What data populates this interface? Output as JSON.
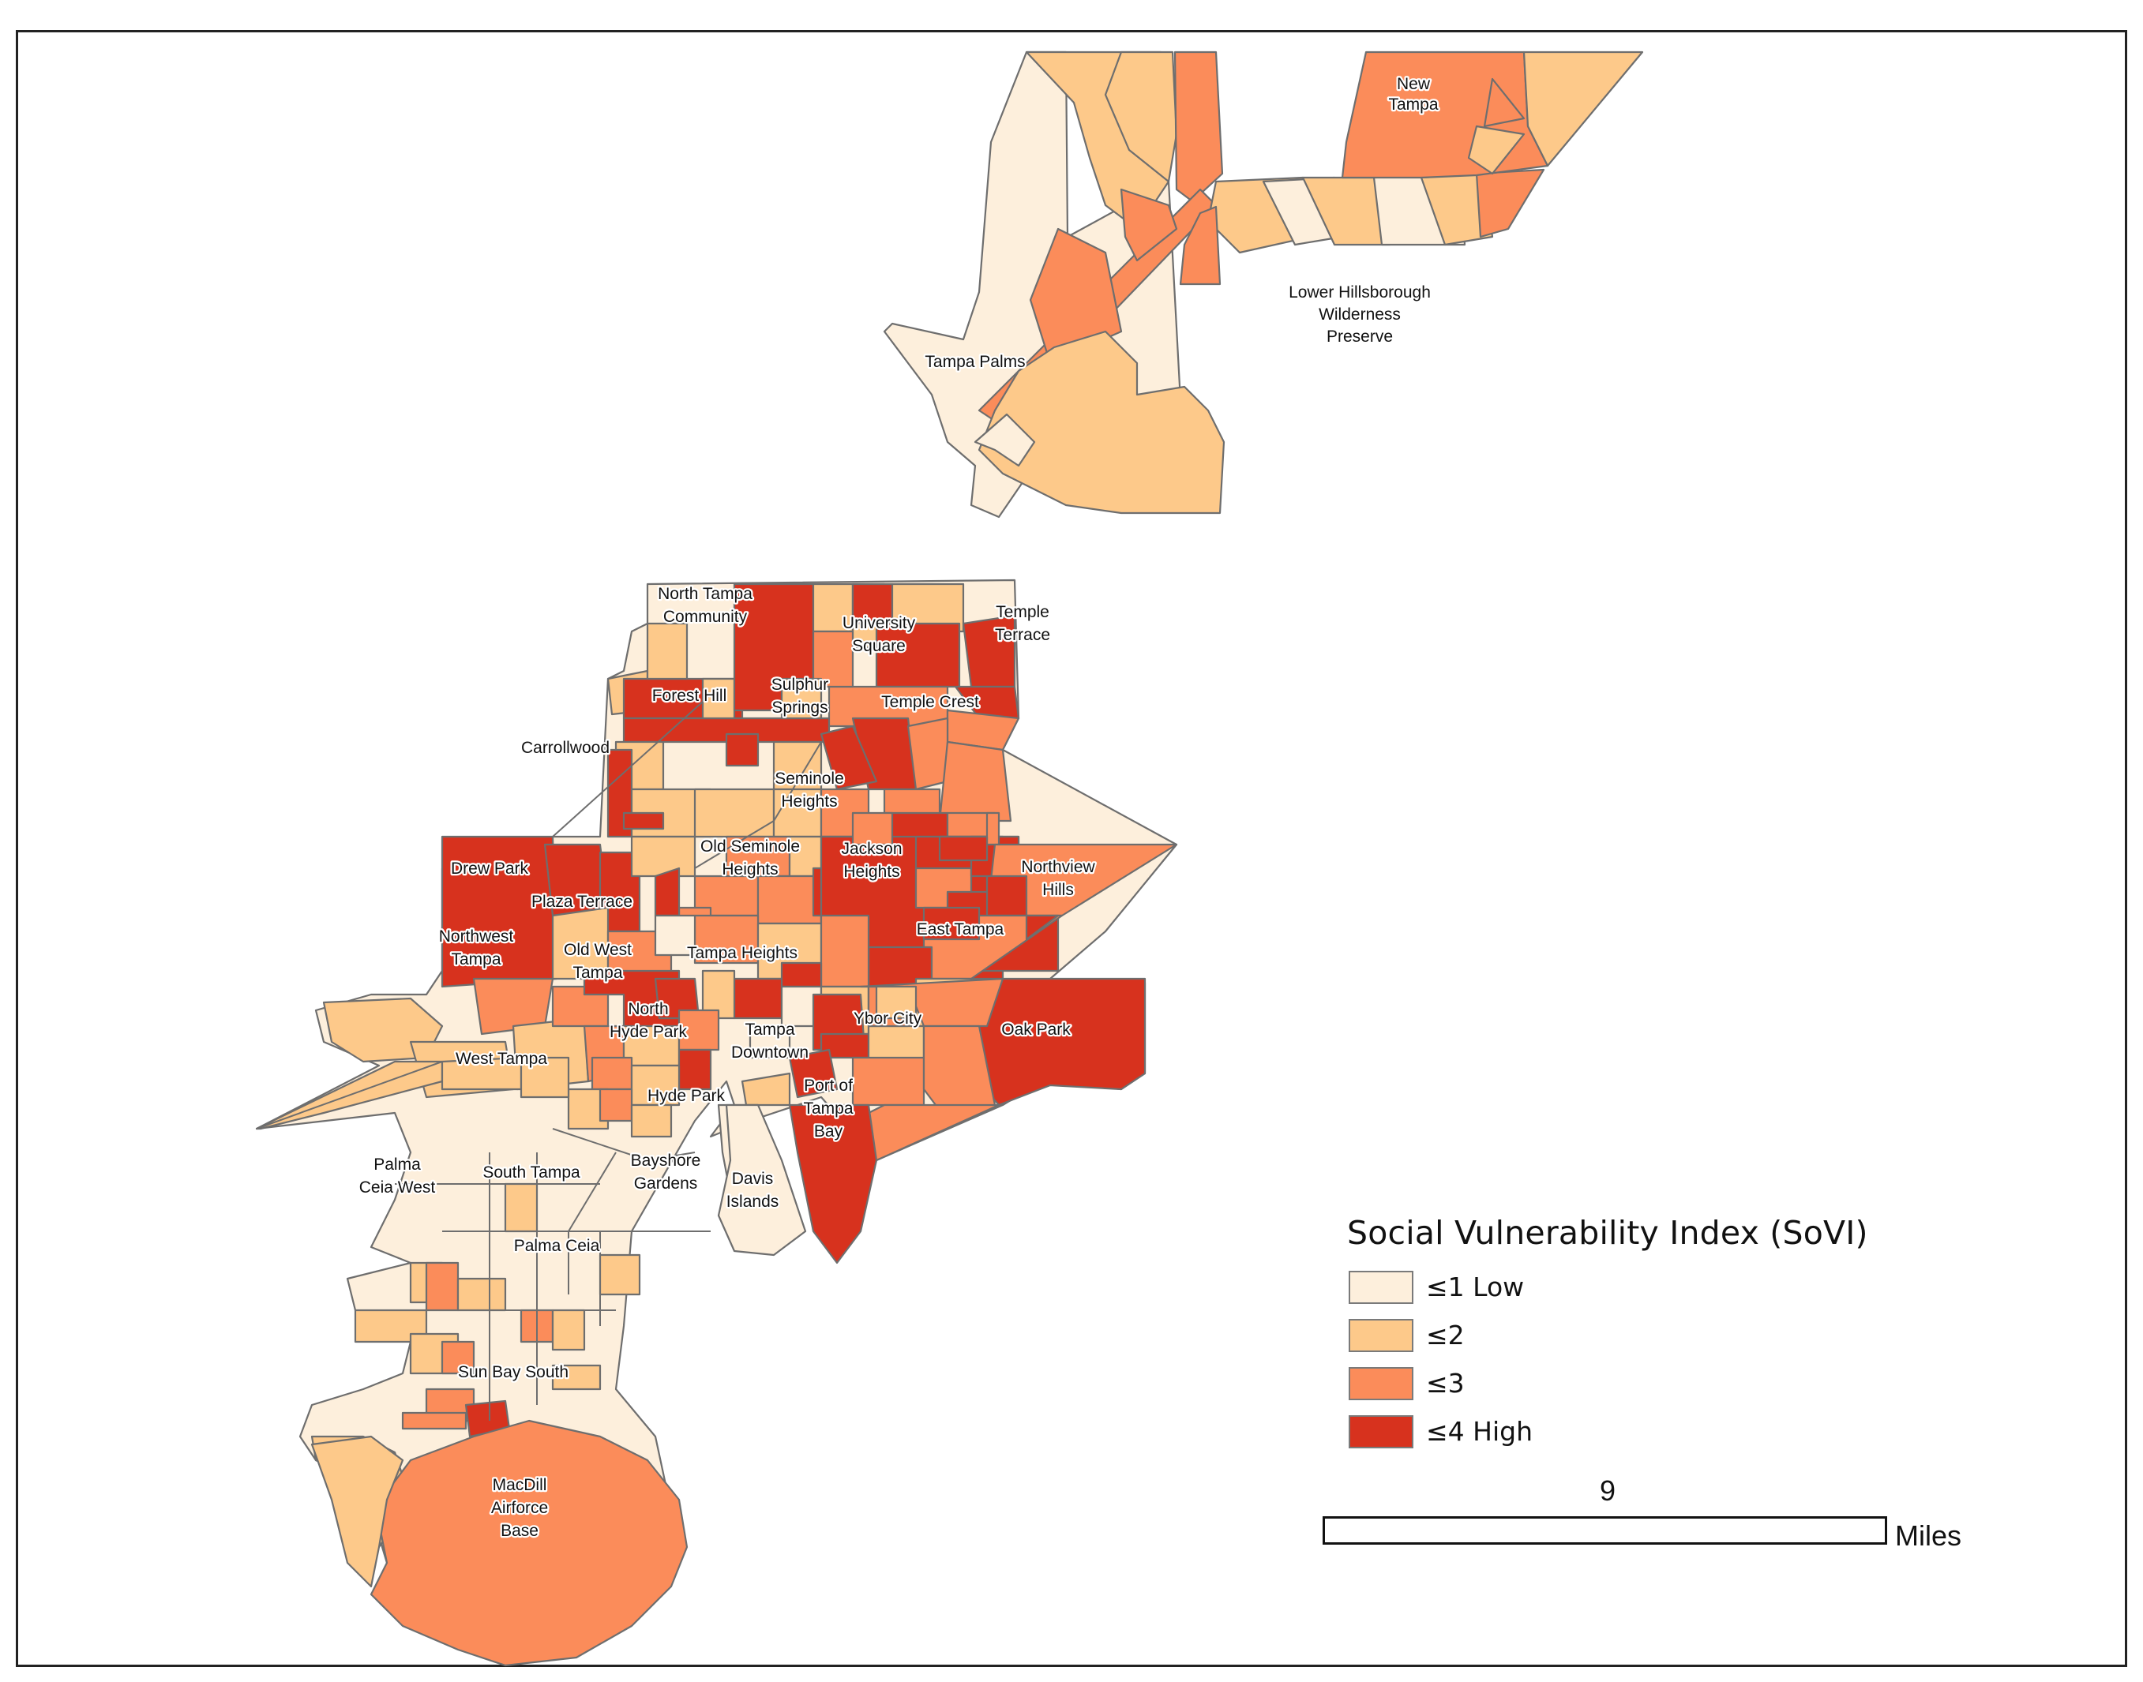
{
  "legend": {
    "title": "Social Vulnerability Index (SoVI)",
    "classes": [
      {
        "label": "≤1 Low",
        "color": "#fdefdc"
      },
      {
        "label": "≤2",
        "color": "#fdc98a"
      },
      {
        "label": "≤3",
        "color": "#fb8c5a"
      },
      {
        "label": "≤4 High",
        "color": "#d7321e"
      }
    ]
  },
  "scale_bar": {
    "value": "9",
    "unit": "Miles"
  },
  "places": {
    "new_tampa": [
      "New",
      "Tampa"
    ],
    "lower_hillsborough": [
      "Lower Hillsborough",
      "Wilderness",
      "Preserve"
    ],
    "tampa_palms": [
      "Tampa Palms"
    ],
    "north_tampa_community": [
      "North Tampa",
      "Community"
    ],
    "university_square": [
      "University",
      "Square"
    ],
    "temple_terrace": [
      "Temple",
      "Terrace"
    ],
    "forest_hill": [
      "Forest Hill"
    ],
    "sulphur_springs": [
      "Sulphur",
      "Springs"
    ],
    "temple_crest": [
      "Temple Crest"
    ],
    "carrollwood": [
      "Carrollwood"
    ],
    "seminole_heights": [
      "Seminole",
      "Heights"
    ],
    "old_seminole_heights": [
      "Old Seminole",
      "Heights"
    ],
    "jackson_heights": [
      "Jackson",
      "Heights"
    ],
    "drew_park": [
      "Drew Park"
    ],
    "northview_hills": [
      "Northview",
      "Hills"
    ],
    "plaza_terrace": [
      "Plaza Terrace"
    ],
    "east_tampa": [
      "East Tampa"
    ],
    "northwest_tampa": [
      "Northwest",
      "Tampa"
    ],
    "old_west_tampa": [
      "Old West",
      "Tampa"
    ],
    "tampa_heights": [
      "Tampa Heights"
    ],
    "north_hyde_park": [
      "North",
      "Hyde Park"
    ],
    "ybor_city": [
      "Ybor City"
    ],
    "oak_park": [
      "Oak Park"
    ],
    "tampa_downtown": [
      "Tampa",
      "Downtown"
    ],
    "west_tampa": [
      "West Tampa"
    ],
    "port_of_tampa_bay": [
      "Port of",
      "Tampa",
      "Bay"
    ],
    "hyde_park": [
      "Hyde Park"
    ],
    "palma_ceia_west": [
      "Palma",
      "Ceia West"
    ],
    "south_tampa": [
      "South Tampa"
    ],
    "bayshore_gardens": [
      "Bayshore",
      "Gardens"
    ],
    "davis_islands": [
      "Davis",
      "Islands"
    ],
    "palma_ceia": [
      "Palma Ceia"
    ],
    "sun_bay_south": [
      "Sun Bay South"
    ],
    "macdill": [
      "MacDill",
      "Airforce",
      "Base"
    ]
  }
}
